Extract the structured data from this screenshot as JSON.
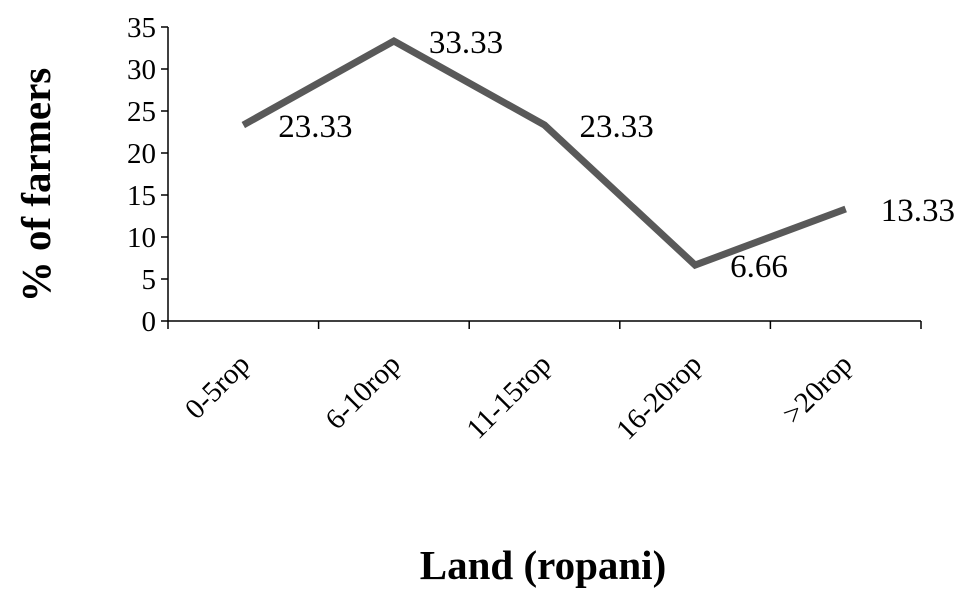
{
  "chart_data": {
    "type": "line",
    "categories": [
      "0-5rop",
      "6-10rop",
      "11-15rop",
      "16-20rop",
      ">20rop"
    ],
    "series": [
      {
        "values": [
          23.33,
          33.33,
          23.33,
          6.66,
          13.33
        ]
      }
    ],
    "data_labels": [
      "23.33",
      "33.33",
      "23.33",
      "6.66",
      "13.33"
    ],
    "title": "",
    "xlabel": "Land (ropani)",
    "ylabel": "% of farmers",
    "ylim": [
      0,
      35
    ],
    "yticks": [
      "0",
      "5",
      "10",
      "15",
      "20",
      "25",
      "30",
      "35"
    ],
    "grid": false,
    "legend": "none",
    "line_color": "#595959"
  }
}
